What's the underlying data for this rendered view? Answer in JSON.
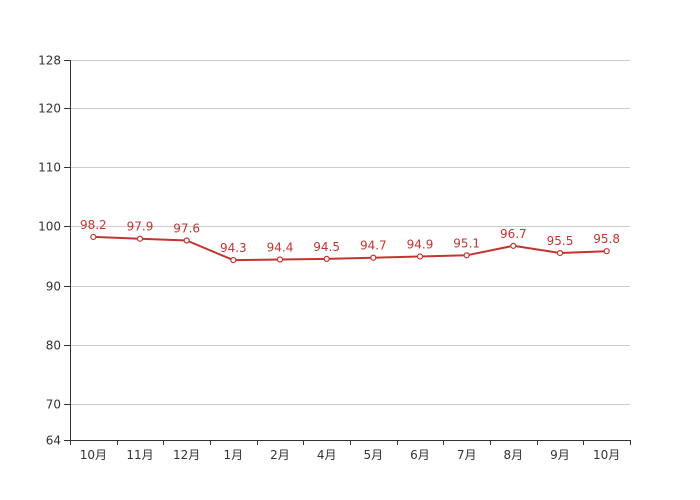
{
  "chart_data": {
    "type": "line",
    "title": "",
    "xlabel": "",
    "ylabel": "",
    "categories": [
      "10月",
      "11月",
      "12月",
      "1月",
      "2月",
      "4月",
      "5月",
      "6月",
      "7月",
      "8月",
      "9月",
      "10月"
    ],
    "series": [
      {
        "values": [
          98.2,
          97.9,
          97.6,
          94.3,
          94.4,
          94.5,
          94.7,
          94.9,
          95.1,
          96.7,
          95.5,
          95.8
        ],
        "data_labels": [
          "98.2",
          "97.9",
          "97.6",
          "94.3",
          "94.4",
          "94.5",
          "94.7",
          "94.9",
          "95.1",
          "96.7",
          "95.5",
          "95.8"
        ],
        "color": "#c23531"
      }
    ],
    "ylim": [
      64,
      128
    ],
    "yticks": [
      64,
      70,
      80,
      90,
      100,
      110,
      120,
      128
    ],
    "ytick_labels": [
      "64",
      "70",
      "80",
      "90",
      "100",
      "110",
      "120",
      "128"
    ],
    "grid": true,
    "legend": "none"
  }
}
